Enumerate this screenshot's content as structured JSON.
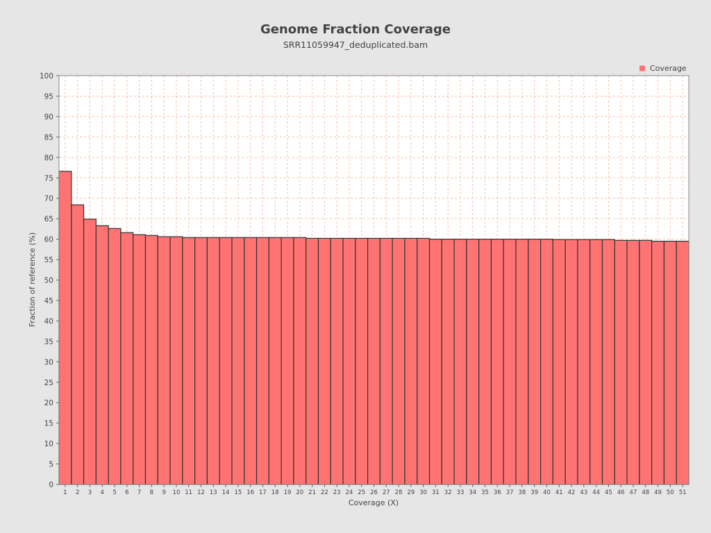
{
  "chart_data": {
    "type": "bar",
    "title": "Genome Fraction Coverage",
    "subtitle": "SRR11059947_deduplicated.bam",
    "xlabel": "Coverage (X)",
    "ylabel": "Fraction of reference (%)",
    "ylim": [
      0,
      100
    ],
    "yticks": [
      0,
      5,
      10,
      15,
      20,
      25,
      30,
      35,
      40,
      45,
      50,
      55,
      60,
      65,
      70,
      75,
      80,
      85,
      90,
      95,
      100
    ],
    "grid": true,
    "legend_position": "top-right",
    "categories": [
      "1",
      "2",
      "3",
      "4",
      "5",
      "6",
      "7",
      "8",
      "9",
      "10",
      "11",
      "12",
      "13",
      "14",
      "15",
      "16",
      "17",
      "18",
      "19",
      "20",
      "21",
      "22",
      "23",
      "24",
      "25",
      "26",
      "27",
      "28",
      "29",
      "30",
      "31",
      "32",
      "33",
      "34",
      "35",
      "36",
      "37",
      "38",
      "39",
      "40",
      "41",
      "42",
      "43",
      "44",
      "45",
      "46",
      "47",
      "48",
      "49",
      "50",
      "51"
    ],
    "series": [
      {
        "name": "Coverage",
        "color": "#ff7373",
        "values": [
          76.6,
          68.4,
          64.9,
          63.3,
          62.6,
          61.6,
          61.1,
          60.9,
          60.6,
          60.6,
          60.4,
          60.4,
          60.4,
          60.4,
          60.4,
          60.4,
          60.4,
          60.4,
          60.4,
          60.4,
          60.2,
          60.2,
          60.2,
          60.2,
          60.2,
          60.2,
          60.2,
          60.2,
          60.2,
          60.2,
          60.0,
          60.0,
          60.0,
          60.0,
          60.0,
          60.0,
          60.0,
          60.0,
          60.0,
          60.0,
          59.9,
          59.9,
          59.9,
          59.9,
          59.9,
          59.7,
          59.7,
          59.7,
          59.5,
          59.5,
          59.5
        ]
      }
    ]
  },
  "colors": {
    "background": "#e6e6e6",
    "plot_background": "#ffffff",
    "grid": "#f2c0a8",
    "bar_fill": "#ff7373",
    "bar_stroke": "#333333",
    "text": "#444444"
  }
}
